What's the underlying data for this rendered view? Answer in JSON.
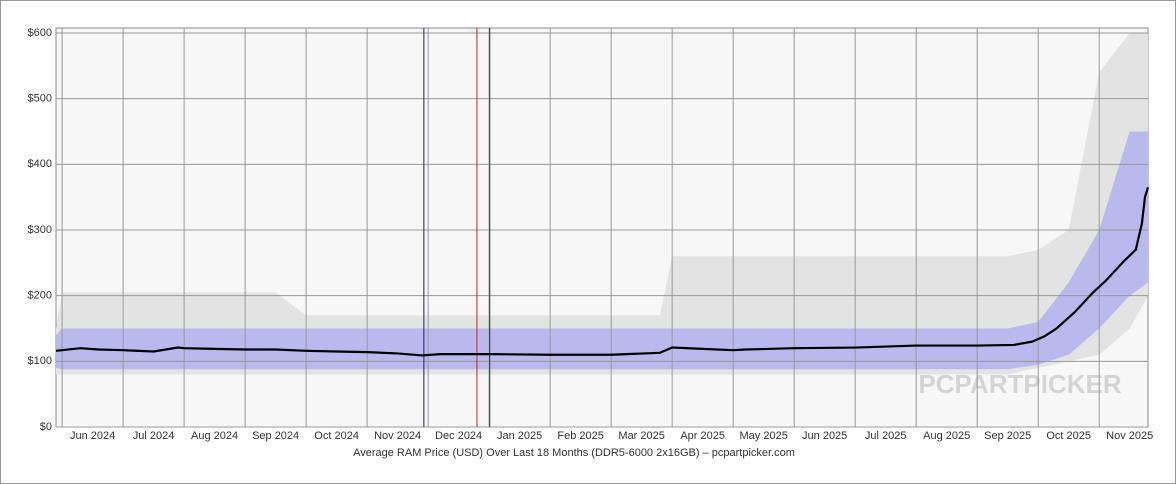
{
  "chart_data": {
    "type": "line",
    "xlabel": "Average RAM Price (USD) Over Last 18 Months (DDR5-6000 2x16GB) – pcpartpicker.com",
    "watermark": "PCPARTPICKER",
    "xlim": [
      -0.1,
      17.8
    ],
    "ylim": [
      0,
      600
    ],
    "grid": true,
    "xticks": [
      {
        "value": 0,
        "label": "Jun 2024"
      },
      {
        "value": 1,
        "label": "Jul 2024"
      },
      {
        "value": 2,
        "label": "Aug 2024"
      },
      {
        "value": 3,
        "label": "Sep 2024"
      },
      {
        "value": 4,
        "label": "Oct 2024"
      },
      {
        "value": 5,
        "label": "Nov 2024"
      },
      {
        "value": 6,
        "label": "Dec 2024"
      },
      {
        "value": 7,
        "label": "Jan 2025"
      },
      {
        "value": 8,
        "label": "Feb 2025"
      },
      {
        "value": 9,
        "label": "Mar 2025"
      },
      {
        "value": 10,
        "label": "Apr 2025"
      },
      {
        "value": 11,
        "label": "May 2025"
      },
      {
        "value": 12,
        "label": "Jun 2025"
      },
      {
        "value": 13,
        "label": "Jul 2025"
      },
      {
        "value": 14,
        "label": "Aug 2025"
      },
      {
        "value": 15,
        "label": "Sep 2025"
      },
      {
        "value": 16,
        "label": "Oct 2025"
      },
      {
        "value": 17,
        "label": "Nov 2025"
      }
    ],
    "yticks": [
      {
        "value": 0,
        "label": "$0"
      },
      {
        "value": 100,
        "label": "$100"
      },
      {
        "value": 200,
        "label": "$200"
      },
      {
        "value": 300,
        "label": "$300"
      },
      {
        "value": 400,
        "label": "$400"
      },
      {
        "value": 500,
        "label": "$500"
      },
      {
        "value": 600,
        "label": "$600"
      }
    ],
    "markers": [
      {
        "x": 5.93,
        "color": "#1a1a8c"
      },
      {
        "x": 6.8,
        "color": "#cc2222"
      },
      {
        "x": 7.01,
        "color": "#333333"
      }
    ],
    "bands": [
      {
        "color": "#e3e3e3",
        "x": [
          -0.1,
          0,
          3.5,
          4,
          9.8,
          10,
          15.5,
          16,
          16.5,
          17,
          17.5,
          17.8
        ],
        "high": [
          150,
          205,
          205,
          170,
          170,
          260,
          260,
          270,
          300,
          540,
          600,
          600
        ],
        "low": [
          80,
          80,
          80,
          80,
          80,
          80,
          80,
          90,
          100,
          110,
          150,
          200
        ]
      },
      {
        "color": "#b9b9ee",
        "x": [
          -0.1,
          0,
          3.5,
          4,
          9.8,
          10,
          15.5,
          16,
          16.5,
          17,
          17.5,
          17.8
        ],
        "high": [
          140,
          150,
          150,
          150,
          150,
          150,
          150,
          160,
          220,
          300,
          450,
          450
        ],
        "low": [
          90,
          88,
          88,
          88,
          88,
          88,
          88,
          95,
          110,
          150,
          200,
          220
        ]
      }
    ],
    "series": [
      {
        "color": "#000000",
        "x": [
          -0.1,
          0.3,
          0.6,
          1.0,
          1.5,
          1.9,
          2.0,
          2.5,
          3.0,
          3.5,
          4.0,
          4.5,
          5.0,
          5.5,
          5.9,
          6.2,
          7.0,
          8.0,
          9.0,
          9.8,
          10.0,
          10.5,
          11.0,
          11.2,
          12.0,
          13.0,
          14.0,
          15.0,
          15.6,
          15.9,
          16.1,
          16.3,
          16.6,
          16.9,
          17.1,
          17.4,
          17.6,
          17.7,
          17.75,
          17.8
        ],
        "values": [
          116,
          120,
          118,
          117,
          115,
          121,
          120,
          119,
          118,
          118,
          116,
          115,
          114,
          112,
          109,
          111,
          111,
          110,
          110,
          113,
          121,
          119,
          117,
          118,
          120,
          121,
          124,
          124,
          125,
          130,
          138,
          150,
          175,
          205,
          222,
          252,
          270,
          310,
          350,
          365
        ]
      }
    ]
  }
}
